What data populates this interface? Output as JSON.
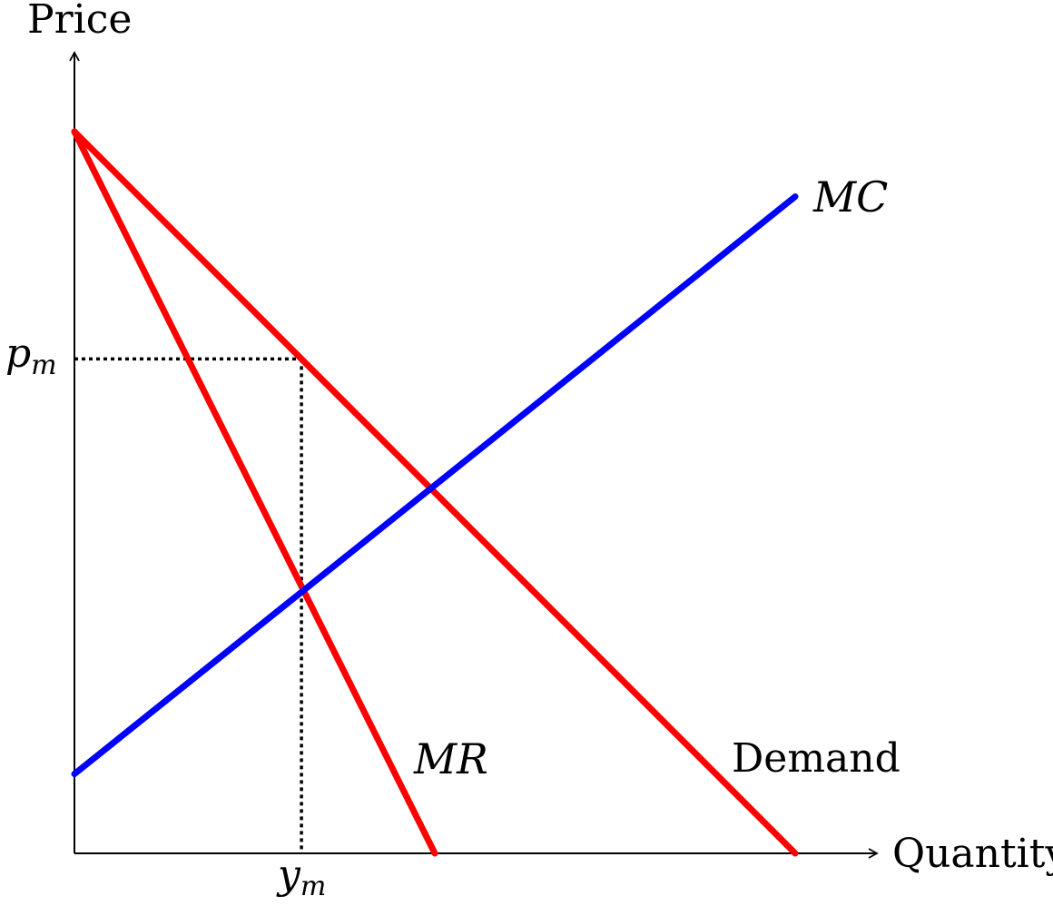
{
  "axes": {
    "y_title": "Price",
    "x_title": "Quantity"
  },
  "ticks": {
    "price_base": "p",
    "price_sub": "m",
    "quantity_base": "y",
    "quantity_sub": "m"
  },
  "curves": {
    "mc_label": "MC",
    "mr_label": "MR",
    "demand_label": "Demand"
  },
  "colors": {
    "demand": "#ff0000",
    "mr": "#ff0000",
    "mc": "#0000ff",
    "axis": "#000000",
    "guide": "#000000"
  },
  "chart_data": {
    "type": "line",
    "x_range": [
      0,
      1
    ],
    "y_range": [
      0,
      1
    ],
    "series": [
      {
        "name": "Demand",
        "points": [
          [
            0,
            1
          ],
          [
            1,
            0
          ]
        ]
      },
      {
        "name": "MR",
        "points": [
          [
            0,
            1
          ],
          [
            0.5,
            0
          ]
        ]
      },
      {
        "name": "MC",
        "points": [
          [
            0,
            0.11
          ],
          [
            1,
            0.91
          ]
        ]
      }
    ],
    "monopoly_point": {
      "quantity": 0.315,
      "price": 0.685
    },
    "guides": "dotted"
  }
}
